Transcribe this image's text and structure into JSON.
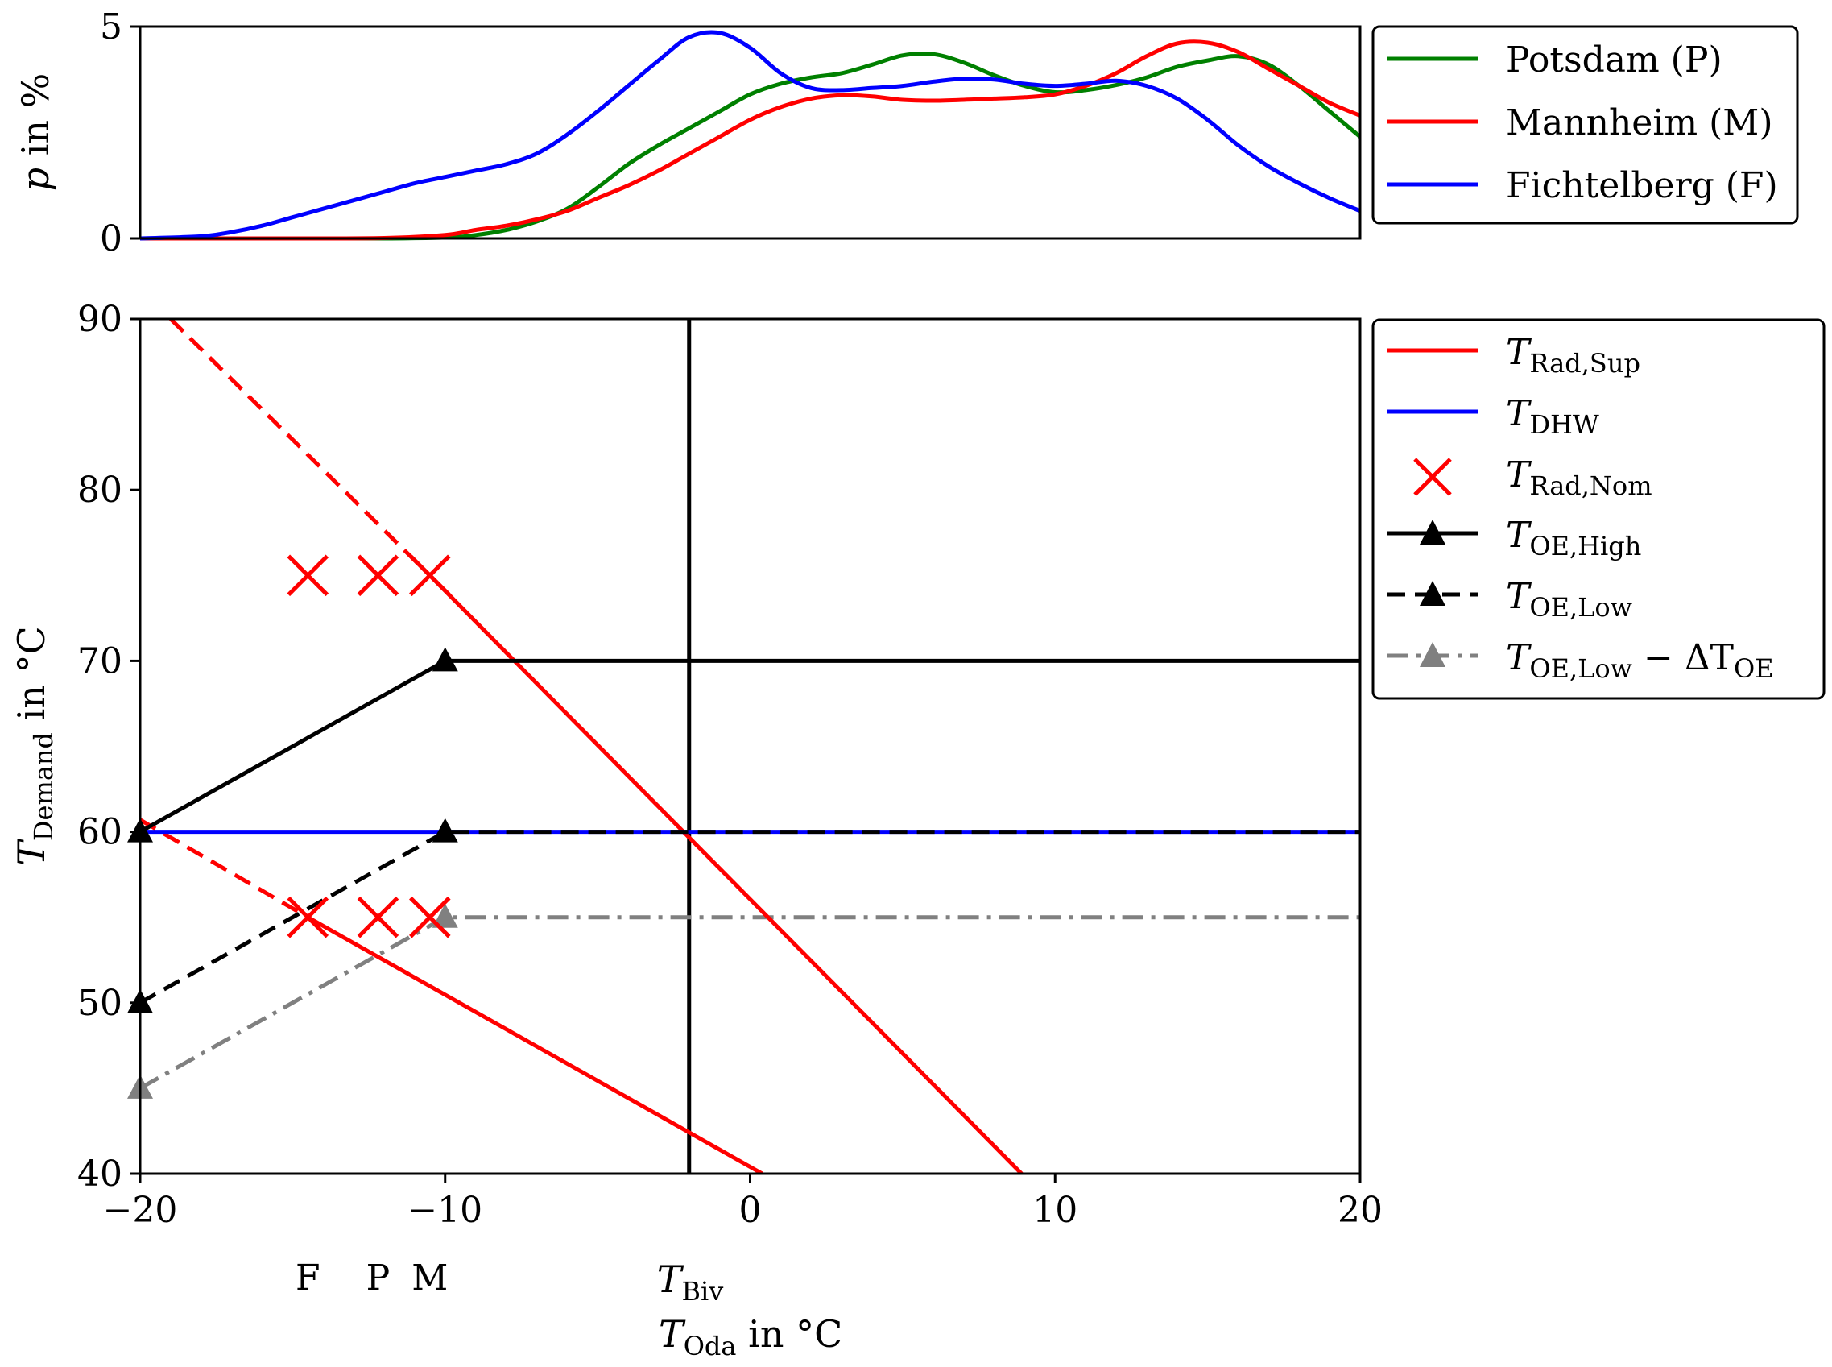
{
  "chart_data": [
    {
      "type": "line",
      "title": "",
      "ylabel_italic": "p",
      "ylabel_rest": " in %",
      "xlim": [
        -20,
        20
      ],
      "ylim": [
        0,
        5
      ],
      "yticks": [
        "0",
        "5"
      ],
      "series": [
        {
          "name": "Potsdam (P)",
          "color": "#008000",
          "x": [
            -15,
            -12,
            -10,
            -9,
            -8,
            -7,
            -6,
            -5,
            -4,
            -3,
            -2,
            -1,
            0,
            1,
            2,
            3,
            4,
            5,
            6,
            7,
            8,
            9,
            10,
            11,
            12,
            13,
            14,
            15,
            16,
            17,
            18,
            19,
            20
          ],
          "y": [
            0,
            0,
            0.02,
            0.08,
            0.2,
            0.4,
            0.7,
            1.2,
            1.75,
            2.2,
            2.6,
            3.0,
            3.4,
            3.65,
            3.8,
            3.9,
            4.1,
            4.32,
            4.35,
            4.15,
            3.85,
            3.6,
            3.45,
            3.5,
            3.62,
            3.8,
            4.05,
            4.2,
            4.3,
            4.1,
            3.6,
            3.0,
            2.4
          ]
        },
        {
          "name": "Mannheim (M)",
          "color": "#ff0000",
          "x": [
            -15,
            -12,
            -10,
            -9,
            -8,
            -7,
            -6,
            -5,
            -4,
            -3,
            -2,
            -1,
            0,
            1,
            2,
            3,
            4,
            5,
            6,
            7,
            8,
            9,
            10,
            11,
            12,
            13,
            14,
            15,
            16,
            17,
            18,
            19,
            20
          ],
          "y": [
            0,
            0.01,
            0.08,
            0.2,
            0.3,
            0.45,
            0.65,
            0.95,
            1.25,
            1.6,
            2.0,
            2.4,
            2.8,
            3.1,
            3.3,
            3.38,
            3.35,
            3.27,
            3.25,
            3.27,
            3.3,
            3.33,
            3.4,
            3.6,
            3.9,
            4.3,
            4.6,
            4.62,
            4.4,
            4.0,
            3.6,
            3.2,
            2.9
          ]
        },
        {
          "name": "Fichtelberg (F)",
          "color": "#0000ff",
          "x": [
            -20,
            -18,
            -17,
            -16,
            -15,
            -14,
            -13,
            -12,
            -11,
            -10,
            -9,
            -8,
            -7,
            -6,
            -5,
            -4,
            -3,
            -2,
            -1,
            0,
            1,
            2,
            3,
            4,
            5,
            6,
            7,
            8,
            9,
            10,
            11,
            12,
            13,
            14,
            15,
            16,
            17,
            18,
            19,
            20
          ],
          "y": [
            0,
            0.05,
            0.15,
            0.3,
            0.5,
            0.7,
            0.9,
            1.1,
            1.3,
            1.45,
            1.6,
            1.75,
            2.0,
            2.45,
            3.0,
            3.6,
            4.2,
            4.75,
            4.85,
            4.5,
            3.9,
            3.55,
            3.5,
            3.55,
            3.6,
            3.7,
            3.77,
            3.75,
            3.65,
            3.6,
            3.65,
            3.72,
            3.6,
            3.3,
            2.8,
            2.2,
            1.7,
            1.3,
            0.95,
            0.65
          ]
        }
      ],
      "legend_position": "outside-right"
    },
    {
      "type": "line",
      "xlim": [
        -20,
        20
      ],
      "ylim": [
        40,
        90
      ],
      "xticks": [
        "−20",
        "−10",
        "0",
        "10",
        "20"
      ],
      "yticks": [
        "40",
        "50",
        "60",
        "70",
        "80",
        "90"
      ],
      "vline_x": -2,
      "extra_xticks": [
        {
          "x": -14.5,
          "label": "F"
        },
        {
          "x": -12.2,
          "label": "P"
        },
        {
          "x": -10.5,
          "label": "M"
        }
      ],
      "biv_label_main": "T",
      "biv_label_sub": "Biv",
      "xlabel_main": "T",
      "xlabel_sub": "Oda",
      "xlabel_rest": " in °C",
      "ylabel_main": "T",
      "ylabel_sub": "Demand",
      "ylabel_rest": " in °C",
      "legend_position": "outside-right",
      "series": [
        {
          "name": "T_Rad,Sup (high, dashed part)",
          "legend": false,
          "color": "#ff0000",
          "style": "dashed",
          "x": [
            -19,
            -10.5
          ],
          "y": [
            90,
            75
          ]
        },
        {
          "name": "T_Rad,Sup (high)",
          "legend": false,
          "color": "#ff0000",
          "style": "solid",
          "x": [
            -10.5,
            8.9
          ],
          "y": [
            75,
            40
          ]
        },
        {
          "name": "T_Rad,Sup (low, dashed part)",
          "legend": false,
          "color": "#ff0000",
          "style": "dashed",
          "x": [
            -20,
            -14.5
          ],
          "y": [
            60.7,
            55
          ]
        },
        {
          "name": "T_Rad,Sup (low)",
          "legend": false,
          "color": "#ff0000",
          "style": "solid",
          "x": [
            -14.5,
            0.4
          ],
          "y": [
            55,
            40
          ]
        },
        {
          "name": "T_DHW",
          "legend_main": "T",
          "legend_sub": "DHW",
          "legend_rest": "",
          "color": "#0000ff",
          "style": "solid",
          "marker": "none",
          "x": [
            -20,
            20
          ],
          "y": [
            60,
            60
          ]
        },
        {
          "name": "T_Rad,Nom",
          "legend_main": "T",
          "legend_sub": "Rad,Nom",
          "legend_rest": "",
          "color": "#ff0000",
          "style": "none",
          "marker": "x",
          "x": [
            -14.5,
            -12.2,
            -10.5,
            -14.5,
            -12.2,
            -10.5
          ],
          "y": [
            75,
            75,
            75,
            55,
            55,
            55
          ]
        },
        {
          "name": "T_OE,High",
          "legend_main": "T",
          "legend_sub": "OE,High",
          "legend_rest": "",
          "color": "#000000",
          "style": "solid",
          "marker": "triangle",
          "x": [
            -20,
            -10,
            20
          ],
          "y": [
            60,
            70,
            70
          ]
        },
        {
          "name": "T_OE,Low",
          "legend_main": "T",
          "legend_sub": "OE,Low",
          "legend_rest": "",
          "color": "#000000",
          "style": "dashed",
          "marker": "triangle",
          "x": [
            -20,
            -10,
            20
          ],
          "y": [
            50,
            60,
            60
          ]
        },
        {
          "name": "T_OE,Low − ΔT_OE",
          "legend_main": "T",
          "legend_sub": "OE,Low",
          "legend_rest": " − ΔT",
          "legend_sub2": "OE",
          "color": "#808080",
          "style": "dashdot",
          "marker": "triangle",
          "x": [
            -20,
            -10,
            20
          ],
          "y": [
            45,
            55,
            55
          ]
        }
      ],
      "legend_rad_sup": {
        "main": "T",
        "sub": "Rad,Sup",
        "color": "#ff0000"
      }
    }
  ]
}
